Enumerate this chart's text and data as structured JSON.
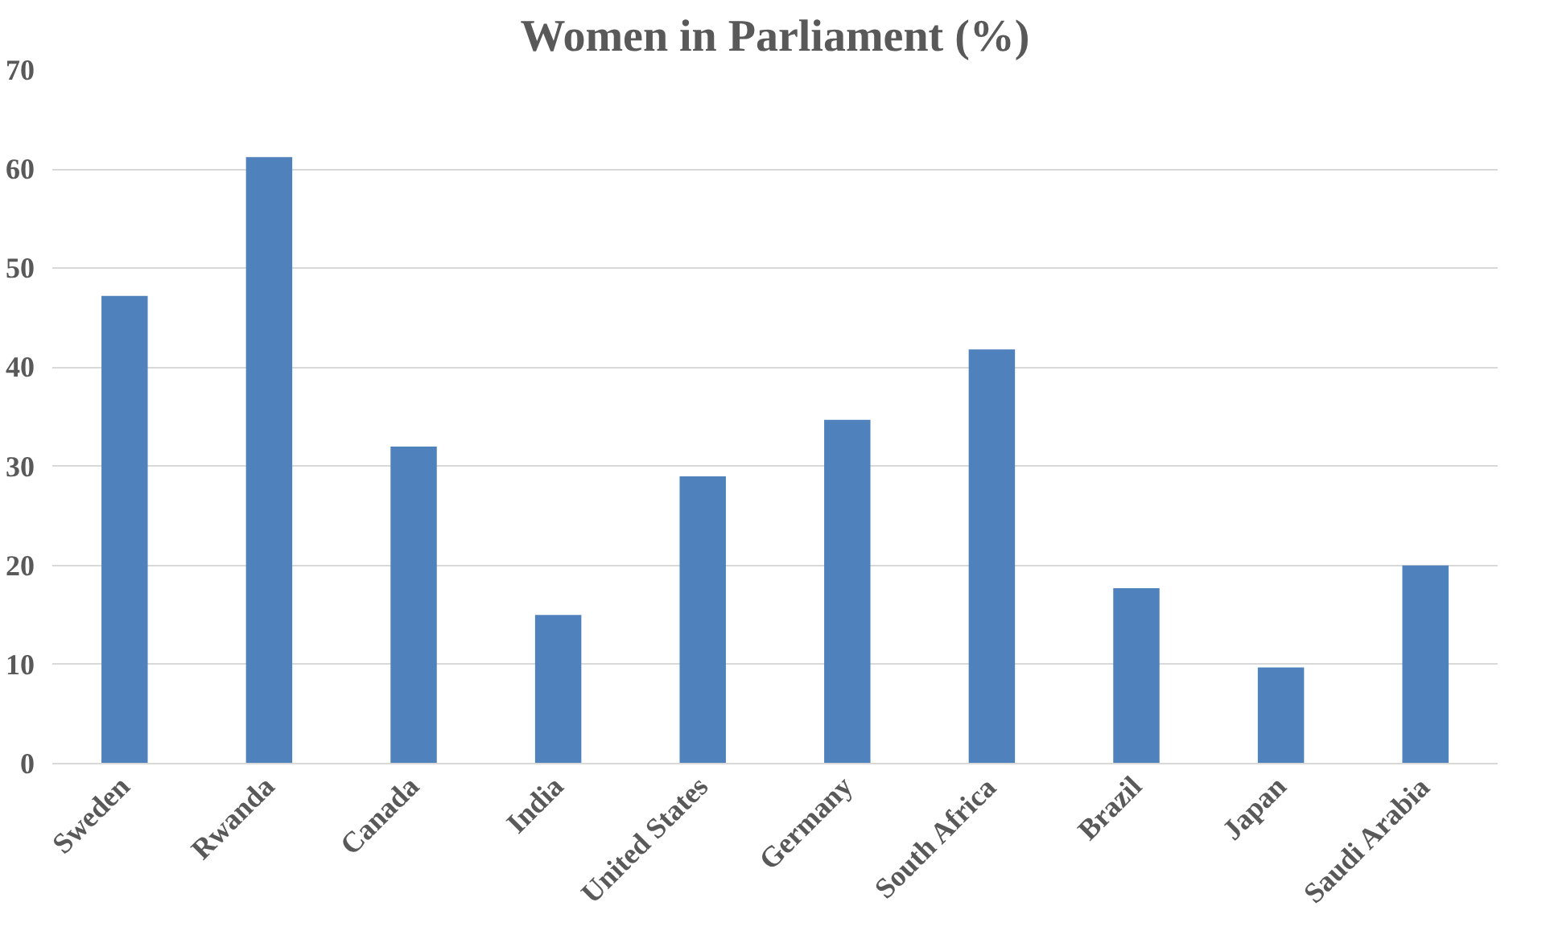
{
  "chart_data": {
    "type": "bar",
    "title": "Women in Parliament (%)",
    "categories": [
      "Sweden",
      "Rwanda",
      "Canada",
      "India",
      "United States",
      "Germany",
      "South Africa",
      "Brazil",
      "Japan",
      "Saudi Arabia"
    ],
    "values": [
      47.2,
      61.2,
      32.0,
      15.0,
      29.0,
      34.7,
      41.8,
      17.7,
      9.7,
      20.0
    ],
    "color": "#4f81bd",
    "ylim": [
      0,
      70
    ],
    "yticks": [
      0,
      10,
      20,
      30,
      40,
      50,
      60,
      70
    ],
    "grid": "y"
  }
}
